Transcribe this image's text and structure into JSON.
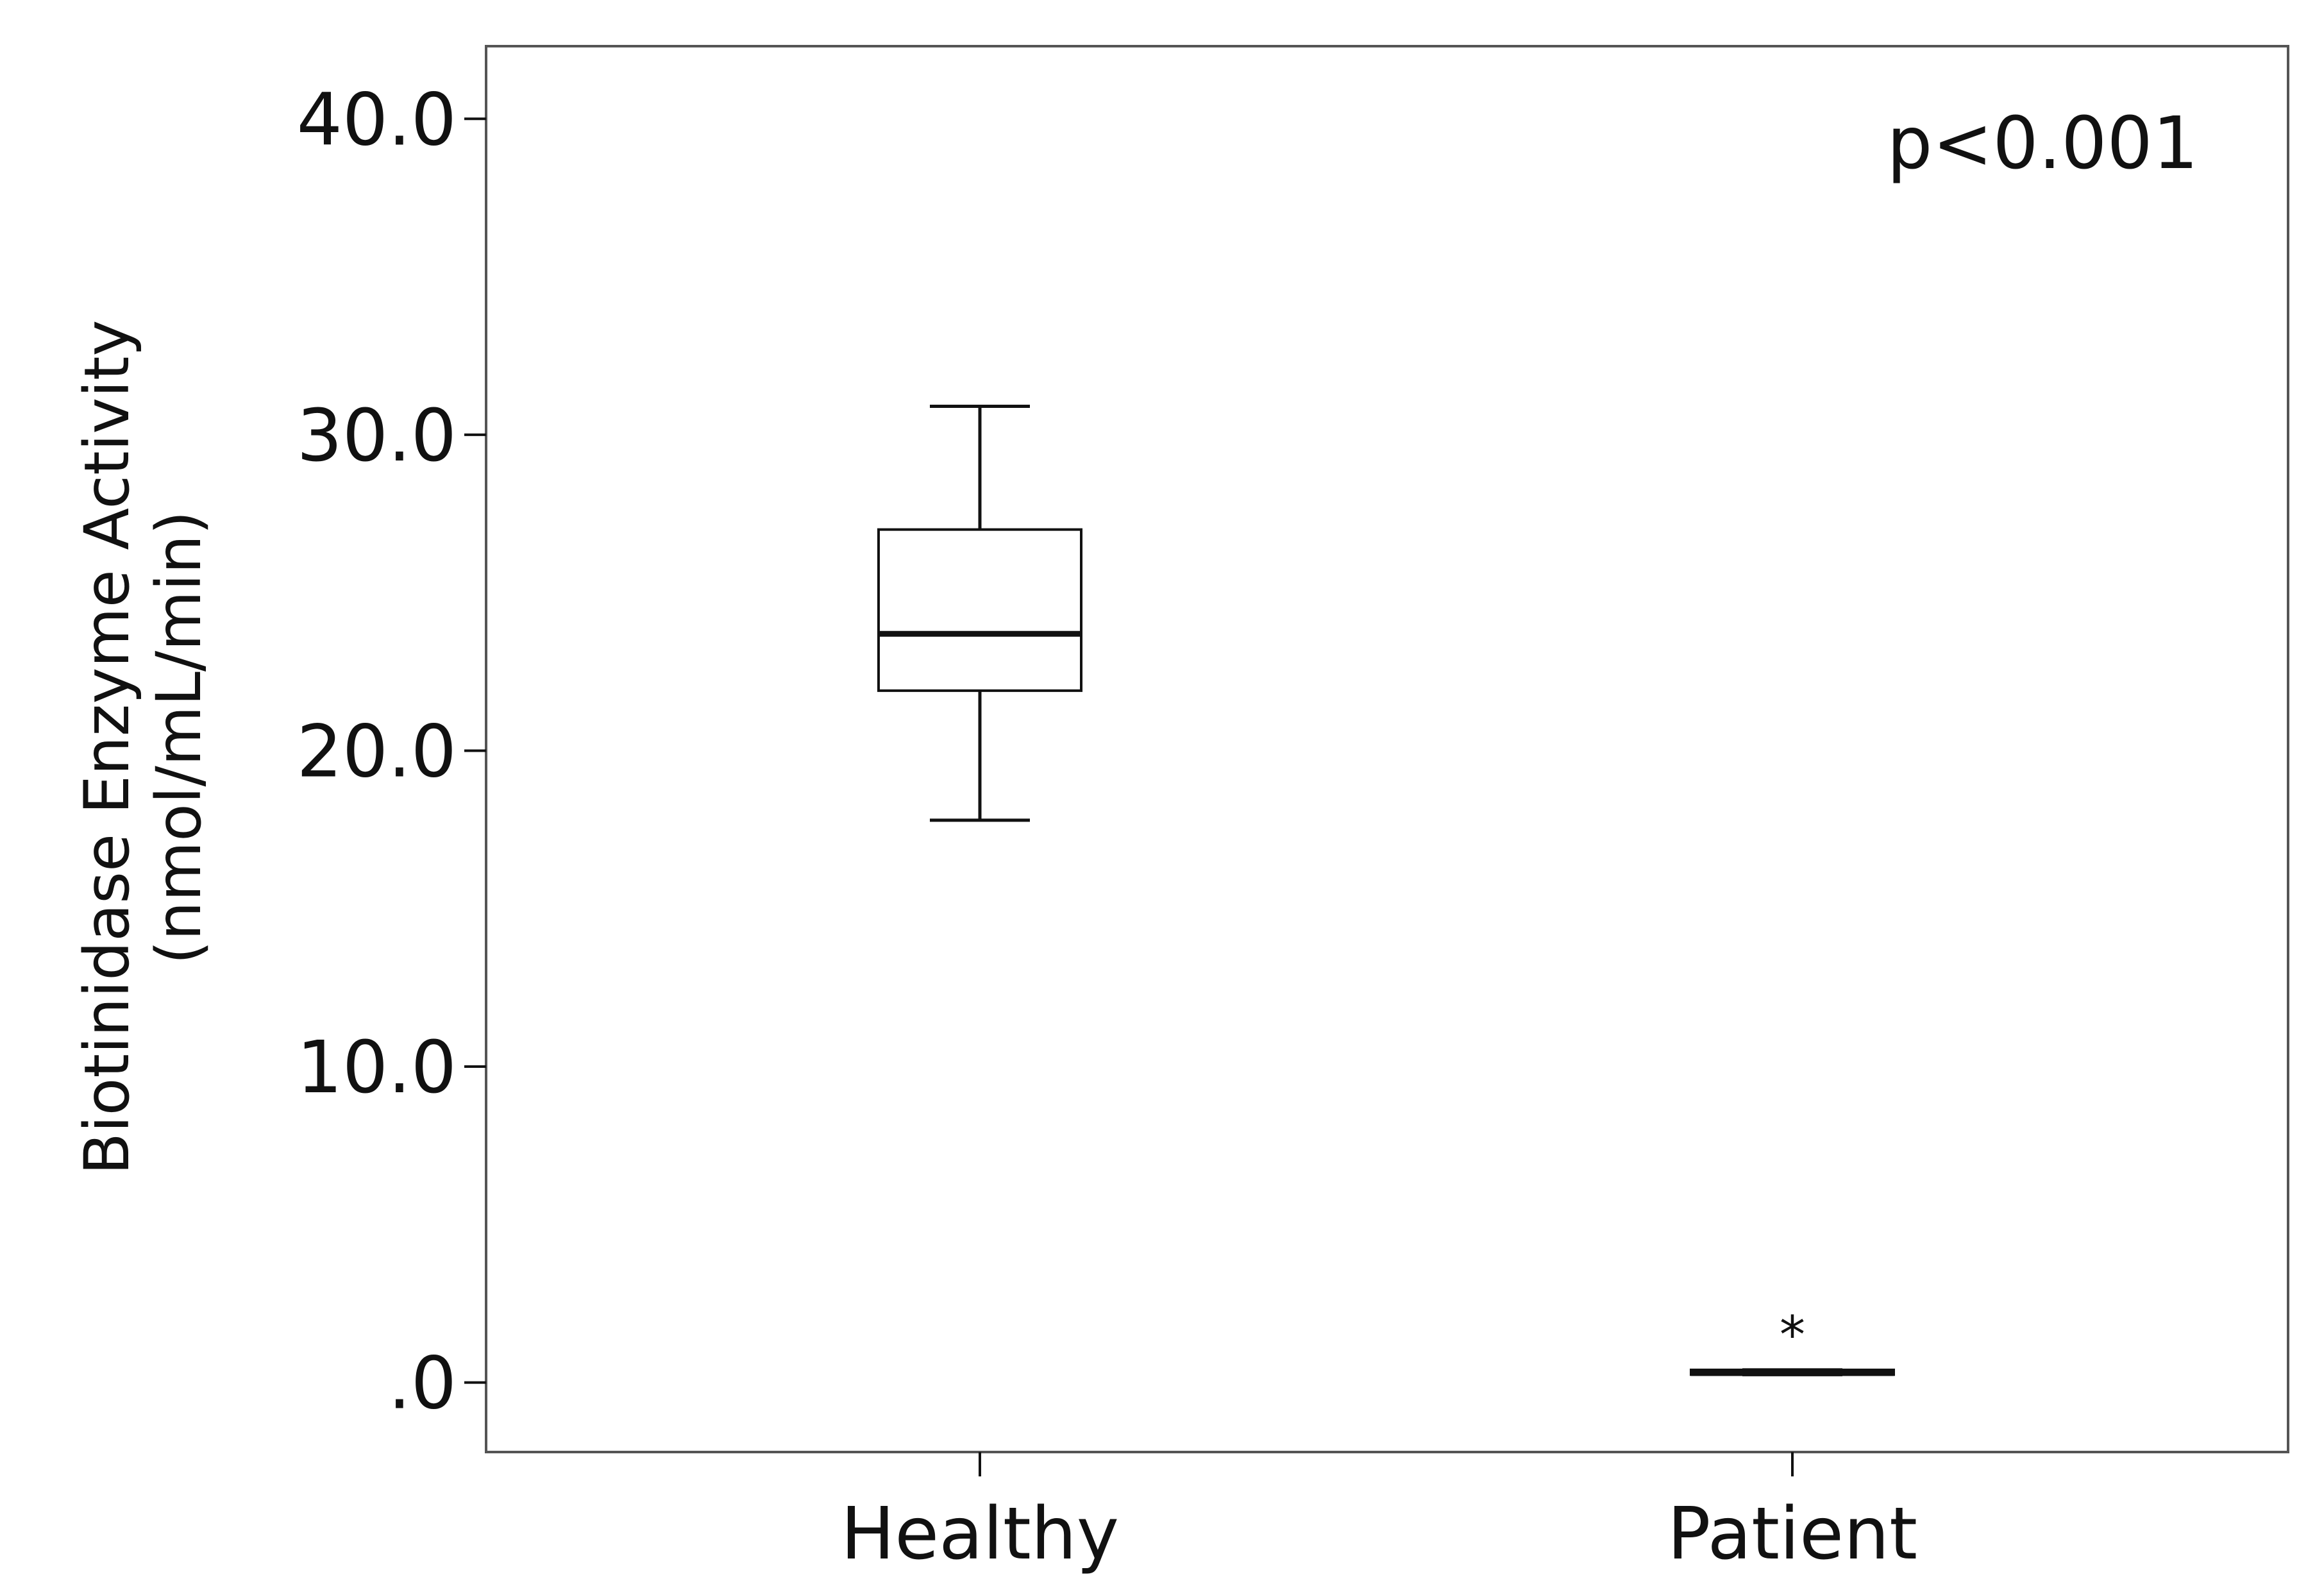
{
  "chart_data": {
    "type": "boxplot",
    "title": "",
    "xlabel": "",
    "ylabel_lines": [
      "Biotinidase Enzyme Activity",
      "(nmol/mL/min)"
    ],
    "ylim": [
      -2.2,
      42.3
    ],
    "yticks": [
      0,
      10,
      20,
      30,
      40
    ],
    "ytick_labels": [
      ".0",
      "10.0",
      "20.0",
      "30.0",
      "40.0"
    ],
    "categories": [
      "Healthy",
      "Patient"
    ],
    "series": [
      {
        "category": "Healthy",
        "whisker_low": 17.8,
        "q1": 21.9,
        "median": 23.7,
        "q3": 27.0,
        "whisker_high": 30.9,
        "outliers": []
      },
      {
        "category": "Patient",
        "whisker_low": 0.25,
        "q1": 0.25,
        "median": 0.3,
        "q3": 0.4,
        "whisker_high": 0.4,
        "outliers": [
          {
            "value": 1.8,
            "marker": "*"
          }
        ]
      }
    ],
    "annotation": "p<0.001",
    "grid": false,
    "colors": {
      "box_fill": "#ffffff",
      "stroke": "#111111",
      "frame": "#555555"
    }
  }
}
